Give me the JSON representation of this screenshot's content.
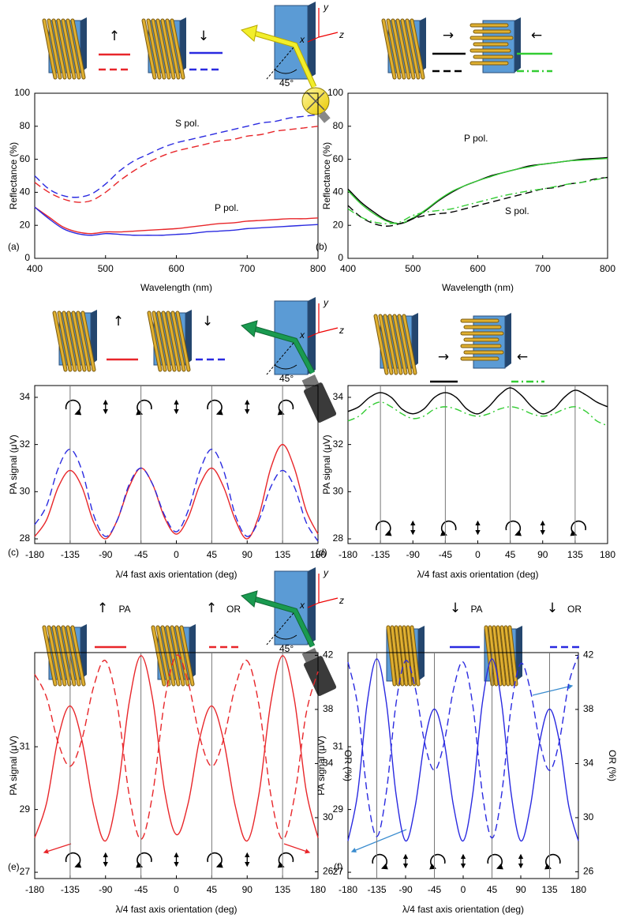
{
  "chart_data": [
    {
      "type": "line",
      "label": "(a)",
      "xlabel": "Wavelength (nm)",
      "ylabel": "Reflectance (%)",
      "x": [
        400,
        420,
        440,
        460,
        480,
        500,
        520,
        540,
        560,
        580,
        600,
        620,
        640,
        660,
        680,
        700,
        720,
        740,
        760,
        780,
        800
      ],
      "xlim": [
        400,
        800
      ],
      "xticks": [
        400,
        500,
        600,
        700,
        800
      ],
      "ylim": [
        0,
        100
      ],
      "yticks": [
        0,
        20,
        40,
        60,
        80,
        100
      ],
      "legend_labels": [
        "↑",
        "↓"
      ],
      "annotations": [
        "S pol.",
        "P pol."
      ],
      "series": [
        {
          "color": "#e8262a",
          "dash": "solid",
          "values": [
            31,
            25,
            19,
            16,
            15,
            16,
            16,
            16.5,
            17,
            17.5,
            18,
            19,
            20,
            21,
            21.5,
            22.5,
            23,
            23.5,
            24,
            24,
            24.5
          ]
        },
        {
          "color": "#e8262a",
          "dash": "dashed",
          "values": [
            46,
            40,
            36,
            34,
            35,
            40,
            47,
            53,
            58,
            62,
            65,
            67,
            69,
            71,
            72,
            74,
            75,
            77,
            78,
            79,
            80
          ]
        },
        {
          "color": "#2a2ae0",
          "dash": "solid",
          "values": [
            31,
            24,
            18,
            15,
            14,
            15,
            14.5,
            14,
            14,
            14,
            14.5,
            15,
            16,
            16.5,
            17,
            18,
            18.5,
            19,
            19.5,
            20,
            20.5
          ]
        },
        {
          "color": "#2a2ae0",
          "dash": "dashed",
          "values": [
            50,
            42,
            38,
            37,
            39,
            45,
            53,
            59,
            63,
            67,
            70,
            72,
            74,
            76,
            78,
            80,
            82,
            83,
            85,
            86,
            87
          ]
        }
      ]
    },
    {
      "type": "line",
      "label": "(b)",
      "xlabel": "Wavelength (nm)",
      "ylabel": "Reflectance (%)",
      "x": [
        400,
        420,
        440,
        460,
        480,
        500,
        520,
        540,
        560,
        580,
        600,
        620,
        640,
        660,
        680,
        700,
        720,
        740,
        760,
        780,
        800
      ],
      "xlim": [
        400,
        800
      ],
      "xticks": [
        400,
        500,
        600,
        700,
        800
      ],
      "ylim": [
        0,
        100
      ],
      "yticks": [
        0,
        20,
        40,
        60,
        80,
        100
      ],
      "legend_labels": [
        "→",
        "←"
      ],
      "annotations": [
        "P pol.",
        "S pol."
      ],
      "series": [
        {
          "color": "#000000",
          "dash": "solid",
          "values": [
            42,
            34,
            28,
            23,
            21,
            24,
            29,
            35,
            40,
            44,
            47,
            50,
            52,
            54,
            56,
            57,
            58,
            59,
            60,
            60.5,
            61
          ]
        },
        {
          "color": "#33cc33",
          "dash": "solid",
          "values": [
            41,
            33,
            27,
            22.5,
            21,
            24.5,
            29.5,
            35.5,
            40.5,
            44,
            47,
            49.5,
            52,
            54,
            55.5,
            57,
            58,
            59,
            59.5,
            60,
            60.5
          ]
        },
        {
          "color": "#000000",
          "dash": "dashed",
          "values": [
            32,
            25,
            21,
            19.5,
            21,
            24,
            26,
            27,
            28,
            30,
            32,
            34,
            36,
            38,
            40,
            42,
            43,
            45,
            46,
            48,
            49
          ]
        },
        {
          "color": "#33cc33",
          "dash": "dashdot",
          "values": [
            30,
            25,
            22,
            21,
            22,
            26,
            28,
            29,
            30,
            32,
            34,
            36,
            38,
            39.5,
            41,
            42,
            43.5,
            45,
            46,
            47.5,
            49
          ]
        }
      ]
    },
    {
      "type": "line",
      "label": "(c)",
      "xlabel": "λ/4 fast axis orientation (deg)",
      "ylabel": "PA signal (μV)",
      "x": [
        -180,
        -165,
        -150,
        -135,
        -120,
        -105,
        -90,
        -75,
        -60,
        -45,
        -30,
        -15,
        0,
        15,
        30,
        45,
        60,
        75,
        90,
        105,
        120,
        135,
        150,
        165,
        180
      ],
      "xlim": [
        -180,
        180
      ],
      "xticks": [
        -180,
        -135,
        -90,
        -45,
        0,
        45,
        90,
        135,
        180
      ],
      "ylim": [
        27.8,
        34.5
      ],
      "yticks": [
        28,
        30,
        32,
        34
      ],
      "vlines": [
        -135,
        -45,
        45,
        135
      ],
      "legend_labels": [
        "↑",
        "↓"
      ],
      "series": [
        {
          "color": "#e8262a",
          "dash": "solid",
          "values": [
            28.1,
            28.8,
            30.2,
            30.9,
            30.2,
            28.7,
            28.0,
            28.8,
            30.2,
            31.0,
            30.3,
            28.9,
            28.2,
            28.9,
            30.3,
            31.0,
            30.2,
            28.8,
            28.0,
            29.0,
            31.0,
            32.0,
            31.0,
            29.2,
            28.2
          ]
        },
        {
          "color": "#2a2ae0",
          "dash": "dashed",
          "values": [
            28.6,
            29.4,
            31.0,
            31.8,
            30.9,
            29.0,
            28.1,
            28.8,
            30.3,
            31.0,
            30.3,
            29.0,
            28.3,
            29.2,
            30.9,
            31.8,
            30.9,
            29.0,
            28.1,
            28.8,
            30.2,
            30.9,
            30.2,
            28.7,
            27.9
          ]
        }
      ]
    },
    {
      "type": "line",
      "label": "(d)",
      "xlabel": "λ/4 fast axis orientation (deg)",
      "ylabel": "PA signal (μV)",
      "x": [
        -180,
        -165,
        -150,
        -135,
        -120,
        -105,
        -90,
        -75,
        -60,
        -45,
        -30,
        -15,
        0,
        15,
        30,
        45,
        60,
        75,
        90,
        105,
        120,
        135,
        150,
        165,
        180
      ],
      "xlim": [
        -180,
        180
      ],
      "xticks": [
        -180,
        -135,
        -90,
        -45,
        0,
        45,
        90,
        135,
        180
      ],
      "ylim": [
        27.8,
        34.5
      ],
      "yticks": [
        28,
        30,
        32,
        34
      ],
      "vlines": [
        -135,
        -45,
        45,
        135
      ],
      "legend_labels": [
        "→",
        "←"
      ],
      "series": [
        {
          "color": "#000000",
          "dash": "solid",
          "values": [
            33.4,
            33.6,
            34.0,
            34.2,
            34.0,
            33.5,
            33.3,
            33.5,
            34.0,
            34.2,
            34.0,
            33.5,
            33.3,
            33.6,
            34.1,
            34.4,
            34.1,
            33.6,
            33.3,
            33.5,
            34.0,
            34.3,
            34.1,
            33.8,
            33.6
          ]
        },
        {
          "color": "#33cc33",
          "dash": "dashdot",
          "values": [
            33.0,
            33.2,
            33.6,
            33.8,
            33.6,
            33.3,
            33.1,
            33.2,
            33.5,
            33.6,
            33.5,
            33.3,
            33.2,
            33.3,
            33.5,
            33.6,
            33.5,
            33.3,
            33.2,
            33.3,
            33.5,
            33.6,
            33.4,
            33.0,
            32.8
          ]
        }
      ]
    },
    {
      "type": "line",
      "label": "(e)",
      "xlabel": "λ/4 fast axis orientation (deg)",
      "ylabel": "PA signal (μV)",
      "y2label": "OR (%)",
      "x": [
        -180,
        -165,
        -150,
        -135,
        -120,
        -105,
        -90,
        -75,
        -60,
        -45,
        -30,
        -15,
        0,
        15,
        30,
        45,
        60,
        75,
        90,
        105,
        120,
        135,
        150,
        165,
        180
      ],
      "xlim": [
        -180,
        180
      ],
      "xticks": [
        -180,
        -135,
        -90,
        -45,
        0,
        45,
        90,
        135,
        180
      ],
      "ylim": [
        26.8,
        34.0
      ],
      "yticks": [
        27,
        29,
        31
      ],
      "y2lim": [
        25.5,
        42.2
      ],
      "y2ticks": [
        26,
        30,
        34,
        38,
        42
      ],
      "vlines": [
        -135,
        -45,
        45,
        135
      ],
      "legend_labels": [
        "↑",
        "PA",
        "↑",
        "OR"
      ],
      "series": [
        {
          "color": "#e8262a",
          "dash": "solid",
          "values": [
            28.1,
            29.2,
            31.3,
            32.3,
            31.2,
            29.1,
            28.0,
            29.5,
            32.4,
            33.9,
            32.5,
            29.6,
            28.2,
            29.2,
            31.3,
            32.3,
            31.2,
            29.1,
            28.0,
            29.5,
            32.4,
            33.9,
            32.5,
            29.6,
            28.1
          ]
        },
        {
          "color": "#e8262a",
          "dash": "dashed",
          "axis": "y2",
          "values": [
            40.6,
            38.9,
            35.5,
            33.8,
            35.8,
            39.7,
            41.6,
            38.3,
            31.7,
            28.4,
            31.8,
            38.6,
            42.0,
            40.0,
            35.9,
            33.8,
            35.8,
            39.7,
            41.6,
            38.3,
            31.7,
            28.4,
            31.5,
            37.7,
            40.8
          ]
        }
      ]
    },
    {
      "type": "line",
      "label": "(f)",
      "xlabel": "λ/4 fast axis orientation (deg)",
      "ylabel": "PA signal (μV)",
      "y2label": "OR (%)",
      "x": [
        -180,
        -165,
        -150,
        -135,
        -120,
        -105,
        -90,
        -75,
        -60,
        -45,
        -30,
        -15,
        0,
        15,
        30,
        45,
        60,
        75,
        90,
        105,
        120,
        135,
        150,
        165,
        180
      ],
      "xlim": [
        -180,
        180
      ],
      "xticks": [
        -180,
        -135,
        -90,
        -45,
        0,
        45,
        90,
        135,
        180
      ],
      "ylim": [
        26.8,
        34.0
      ],
      "yticks": [
        27,
        29,
        31
      ],
      "y2lim": [
        25.5,
        42.2
      ],
      "y2ticks": [
        26,
        30,
        34,
        38,
        42
      ],
      "vlines": [
        -135,
        -45,
        45,
        135
      ],
      "legend_labels": [
        "↓",
        "PA",
        "↓",
        "OR"
      ],
      "series": [
        {
          "color": "#2a2ae0",
          "dash": "solid",
          "values": [
            28.0,
            29.5,
            32.4,
            33.8,
            32.4,
            29.5,
            28.0,
            29.1,
            31.2,
            32.2,
            31.2,
            29.1,
            28.0,
            29.5,
            32.4,
            33.8,
            32.4,
            29.5,
            28.0,
            29.1,
            31.2,
            32.2,
            31.2,
            29.1,
            28.0
          ]
        },
        {
          "color": "#2a2ae0",
          "dash": "dashed",
          "axis": "y2",
          "values": [
            41.5,
            38.3,
            31.8,
            28.6,
            31.9,
            38.4,
            41.6,
            39.6,
            35.5,
            33.5,
            35.5,
            39.5,
            41.5,
            38.3,
            31.8,
            28.5,
            31.7,
            38.2,
            41.4,
            39.4,
            35.5,
            33.5,
            35.6,
            39.9,
            42.0
          ]
        }
      ]
    }
  ],
  "setups": [
    {
      "axes": [
        "x",
        "y",
        "z"
      ],
      "angle": "45°"
    },
    {
      "axes": [
        "x",
        "y",
        "z"
      ],
      "angle": "45°"
    },
    {
      "axes": [
        "x",
        "y",
        "z"
      ],
      "angle": "45°"
    }
  ]
}
